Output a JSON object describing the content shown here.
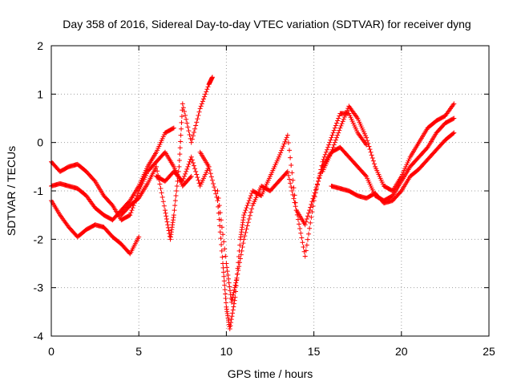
{
  "chart_data": {
    "type": "scatter",
    "title": "Day 358 of 2016, Sidereal Day-to-day VTEC variation (SDTVAR) for receiver dyng",
    "xlabel": "GPS time / hours",
    "ylabel": "SDTVAR / TECUs",
    "xlim": [
      0,
      25
    ],
    "ylim": [
      -4,
      2
    ],
    "xticks": [
      0,
      5,
      10,
      15,
      20,
      25
    ],
    "yticks": [
      -4,
      -3,
      -2,
      -1,
      0,
      1,
      2
    ],
    "grid": true,
    "marker": "+",
    "color": "#ff0000",
    "series": [
      {
        "x": [
          0.0,
          0.5,
          1.0,
          1.5,
          2.0,
          2.5,
          3.0,
          3.5,
          4.0,
          4.5,
          5.0,
          5.5,
          6.0,
          6.5,
          7.0,
          7.5,
          8.0
        ],
        "y": [
          -0.4,
          -0.6,
          -0.5,
          -0.45,
          -0.6,
          -0.8,
          -1.1,
          -1.3,
          -1.6,
          -1.5,
          -1.0,
          -0.6,
          -0.4,
          -0.2,
          -0.5,
          -0.9,
          -0.7
        ]
      },
      {
        "x": [
          0.0,
          0.5,
          1.0,
          1.5,
          2.0,
          2.5,
          3.0,
          3.5,
          4.0,
          4.5,
          5.0
        ],
        "y": [
          -1.2,
          -1.5,
          -1.75,
          -1.95,
          -1.8,
          -1.7,
          -1.75,
          -1.95,
          -2.1,
          -2.3,
          -1.95
        ]
      },
      {
        "x": [
          0.0,
          0.5,
          1.0,
          1.5,
          2.0,
          2.5,
          3.0,
          3.5,
          4.0,
          4.5,
          5.0,
          5.5,
          6.0,
          6.5,
          7.0
        ],
        "y": [
          -0.9,
          -0.85,
          -0.9,
          -0.95,
          -1.1,
          -1.35,
          -1.5,
          -1.6,
          -1.4,
          -1.2,
          -0.9,
          -0.5,
          -0.2,
          0.2,
          0.3
        ]
      },
      {
        "x": [
          4.0,
          4.5,
          5.0,
          5.5,
          6.0,
          6.5,
          6.8,
          7.0,
          7.3,
          7.5,
          8.0,
          8.5,
          9.0,
          9.2
        ],
        "y": [
          -1.5,
          -1.3,
          -1.15,
          -0.85,
          -0.5,
          -1.4,
          -2.0,
          -1.5,
          -0.5,
          0.8,
          0.0,
          0.7,
          1.2,
          1.35
        ]
      },
      {
        "x": [
          8.5,
          9.0,
          9.5,
          9.8,
          10.0,
          10.2,
          10.5,
          10.8,
          11.0,
          11.5,
          12.0,
          12.5,
          13.0,
          13.5,
          14.0,
          14.5,
          15.0,
          15.5,
          16.0,
          16.5,
          17.0,
          17.5,
          18.0
        ],
        "y": [
          -0.2,
          -0.5,
          -1.2,
          -2.5,
          -3.4,
          -3.85,
          -3.2,
          -2.0,
          -1.5,
          -1.0,
          -1.1,
          -0.7,
          -0.3,
          0.15,
          -1.4,
          -2.35,
          -1.2,
          -0.4,
          0.1,
          0.6,
          0.6,
          0.2,
          -0.05
        ]
      },
      {
        "x": [
          9.5,
          10.0,
          10.3,
          10.6,
          11.0,
          11.5,
          12.0,
          12.5,
          13.0,
          13.5,
          14.0,
          14.5,
          15.0,
          15.5,
          16.0,
          16.5,
          17.0,
          17.5,
          18.0,
          18.5,
          19.0,
          19.5,
          20.0,
          20.5,
          21.0,
          21.5,
          22.0,
          22.5,
          23.0
        ],
        "y": [
          -1.0,
          -2.5,
          -3.3,
          -2.8,
          -2.0,
          -1.3,
          -0.9,
          -1.0,
          -0.8,
          -0.6,
          -1.4,
          -1.7,
          -1.1,
          -0.5,
          -0.2,
          -0.1,
          -0.3,
          -0.5,
          -0.7,
          -1.1,
          -1.2,
          -1.1,
          -0.8,
          -0.5,
          -0.3,
          -0.1,
          0.2,
          0.4,
          0.5
        ]
      },
      {
        "x": [
          16.0,
          16.5,
          17.0,
          17.5,
          18.0,
          18.5,
          19.0,
          19.5,
          20.0,
          20.5,
          21.0,
          21.5,
          22.0,
          22.5,
          23.0
        ],
        "y": [
          -0.9,
          -0.95,
          -1.0,
          -1.1,
          -1.15,
          -1.05,
          -1.25,
          -1.2,
          -1.0,
          -0.7,
          -0.55,
          -0.35,
          -0.15,
          0.05,
          0.2
        ]
      },
      {
        "x": [
          15.5,
          16.0,
          16.5,
          17.0,
          17.5,
          18.0,
          18.5,
          19.0,
          19.5,
          20.0,
          20.5,
          21.0,
          21.5,
          22.0,
          22.5,
          23.0
        ],
        "y": [
          -0.6,
          -0.2,
          0.3,
          0.75,
          0.5,
          0.1,
          -0.5,
          -0.9,
          -1.0,
          -0.7,
          -0.3,
          0.0,
          0.3,
          0.45,
          0.55,
          0.8
        ]
      },
      {
        "x": [
          6.0,
          6.5,
          7.0,
          7.5,
          8.0,
          8.5,
          9.0
        ],
        "y": [
          -0.7,
          -0.8,
          -0.6,
          -0.8,
          -0.3,
          -0.9,
          -0.5
        ]
      }
    ]
  }
}
